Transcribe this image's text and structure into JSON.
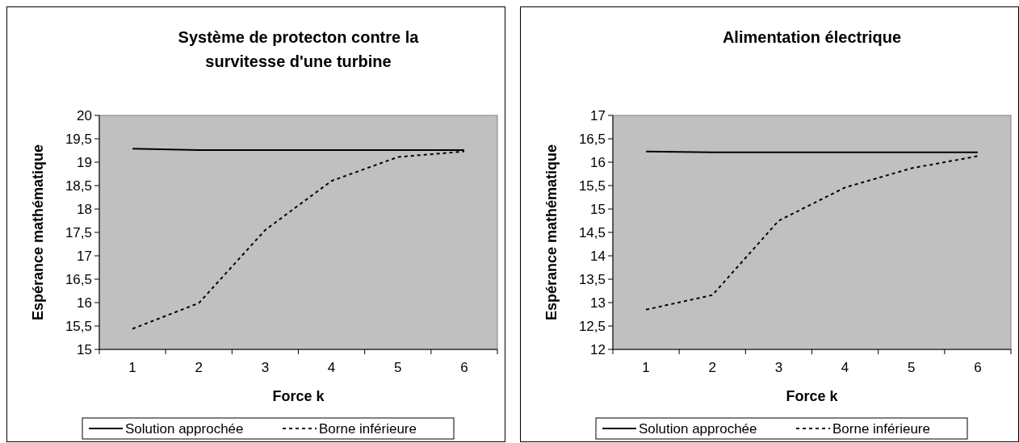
{
  "chart_data": [
    {
      "type": "line",
      "title": "Système de protecton contre la survitesse d'une turbine",
      "xlabel": "Force k",
      "ylabel": "Espérance mathématique",
      "categories": [
        "1",
        "2",
        "3",
        "4",
        "5",
        "6"
      ],
      "ylim": [
        15,
        20
      ],
      "yticks": [
        15,
        {
          "value": 15.5,
          "label": "15,5"
        },
        16,
        {
          "value": 16.5,
          "label": "16,5"
        },
        17,
        {
          "value": 17.5,
          "label": "17,5"
        },
        18,
        {
          "value": 18.5,
          "label": "18,5"
        },
        19,
        {
          "value": 19.5,
          "label": "19,5"
        },
        20
      ],
      "grid": false,
      "legend": "bottom",
      "marker": "none",
      "series": [
        {
          "name": "Solution approchée",
          "color": "#000000",
          "line_style": "solid",
          "values": [
            19.29,
            19.26,
            19.26,
            19.26,
            19.26,
            19.26
          ]
        },
        {
          "name": "Borne inférieure",
          "color": "#000000",
          "line_style": "dashed",
          "values": [
            15.44,
            15.99,
            17.55,
            18.6,
            19.11,
            19.23
          ]
        }
      ]
    },
    {
      "type": "line",
      "title": "Alimentation électrique",
      "xlabel": "Force k",
      "ylabel": "Espérance mathématique",
      "categories": [
        "1",
        "2",
        "3",
        "4",
        "5",
        "6"
      ],
      "ylim": [
        12,
        17
      ],
      "yticks": [
        12,
        {
          "value": 12.5,
          "label": "12,5"
        },
        13,
        {
          "value": 13.5,
          "label": "13,5"
        },
        14,
        {
          "value": 14.5,
          "label": "14,5"
        },
        15,
        {
          "value": 15.5,
          "label": "15,5"
        },
        16,
        {
          "value": 16.5,
          "label": "16,5"
        },
        17
      ],
      "grid": false,
      "legend": "bottom",
      "marker": "none",
      "series": [
        {
          "name": "Solution approchée",
          "color": "#000000",
          "line_style": "solid",
          "values": [
            16.23,
            16.21,
            16.21,
            16.21,
            16.21,
            16.21
          ]
        },
        {
          "name": "Borne inférieure",
          "color": "#000000",
          "line_style": "dashed",
          "values": [
            12.85,
            13.16,
            14.75,
            15.46,
            15.87,
            16.13
          ]
        }
      ]
    }
  ]
}
